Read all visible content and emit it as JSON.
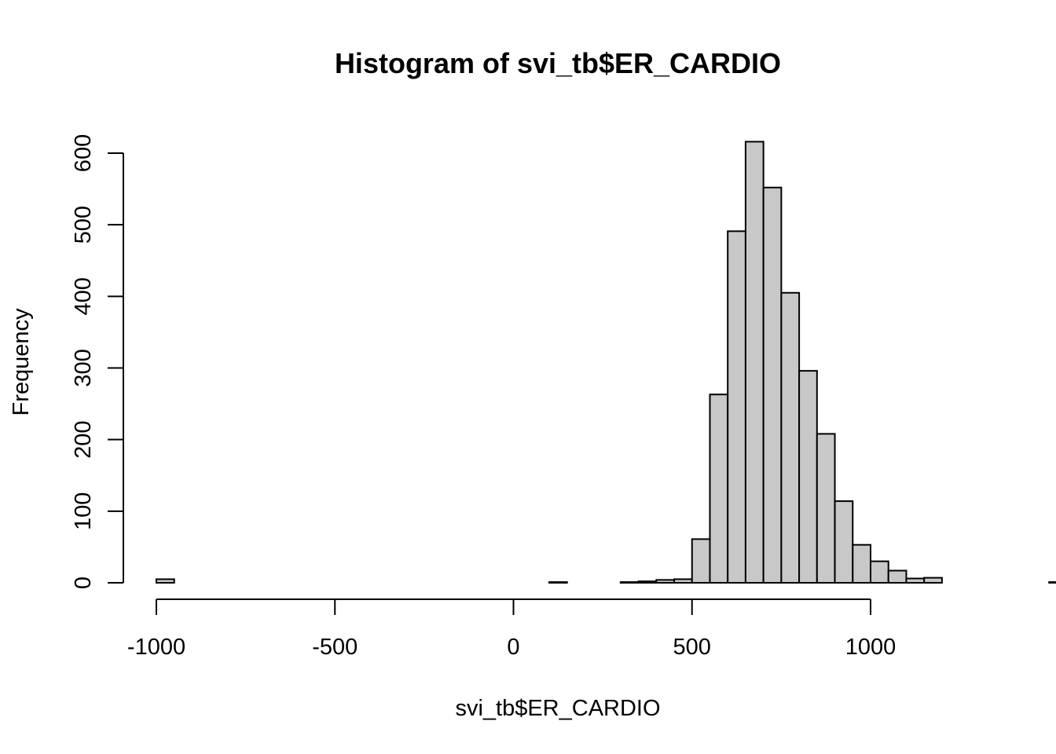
{
  "chart_data": {
    "type": "bar",
    "title": "Histogram of svi_tb$ER_CARDIO",
    "xlabel": "svi_tb$ER_CARDIO",
    "ylabel": "Frequency",
    "xlim": [
      -1000,
      1250
    ],
    "ylim": [
      0,
      600
    ],
    "bin_width": 50,
    "bin_start": -1000,
    "values": [
      5,
      0,
      0,
      0,
      0,
      0,
      0,
      0,
      0,
      0,
      0,
      0,
      0,
      0,
      0,
      0,
      0,
      0,
      0,
      0,
      0,
      0,
      1,
      0,
      0,
      0,
      1,
      2,
      4,
      5,
      61,
      263,
      491,
      616,
      552,
      405,
      296,
      208,
      114,
      53,
      30,
      17,
      6,
      7,
      0,
      0,
      0,
      0,
      0,
      0,
      1
    ],
    "x_ticks": [
      "-1000",
      "-500",
      "0",
      "500",
      "1000"
    ],
    "x_tick_values": [
      -1000,
      -500,
      0,
      500,
      1000
    ],
    "y_ticks": [
      "0",
      "100",
      "200",
      "300",
      "400",
      "500",
      "600"
    ],
    "y_tick_values": [
      0,
      100,
      200,
      300,
      400,
      500,
      600
    ],
    "bar_color": "#c8c8c8",
    "bar_border_color": "#000000",
    "grid": false
  }
}
